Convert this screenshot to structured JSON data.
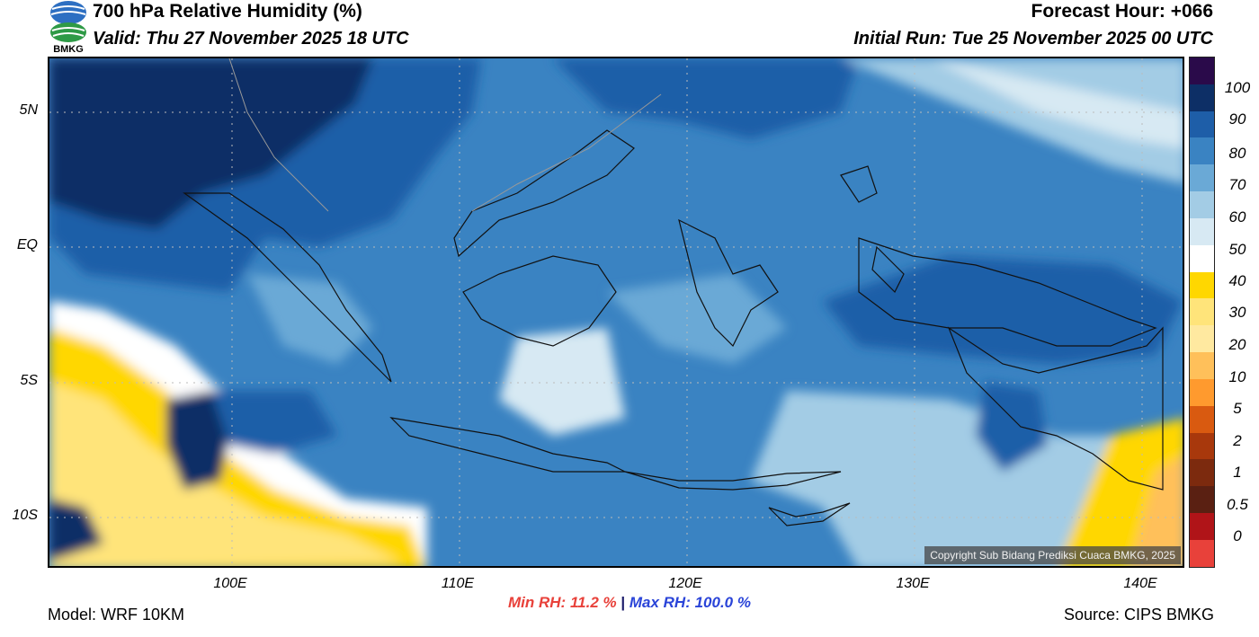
{
  "header": {
    "title": "700 hPa Relative Humidity (%)",
    "valid": "Valid: Thu 27 November 2025 18 UTC",
    "forecast_hour": "Forecast Hour: +066",
    "initial_run": "Initial Run: Tue 25 November 2025 00 UTC"
  },
  "logo": {
    "text": "BMKG"
  },
  "axes": {
    "lat_labels": [
      "5N",
      "EQ",
      "5S",
      "10S"
    ],
    "lon_labels": [
      "100E",
      "110E",
      "120E",
      "130E",
      "140E"
    ]
  },
  "colorbar": {
    "labels": [
      "100",
      "90",
      "80",
      "70",
      "60",
      "50",
      "40",
      "30",
      "20",
      "10",
      "5",
      "2",
      "1",
      "0.5",
      "0"
    ],
    "colors": [
      "#2a0a4a",
      "#0d2f66",
      "#1e5ea8",
      "#3a83c2",
      "#6aa9d6",
      "#a3cce5",
      "#d7e9f3",
      "#ffffff",
      "#ffd700",
      "#ffe47a",
      "#ffe9a0",
      "#ffc05a",
      "#ff9a2e",
      "#d95a10",
      "#a8380c",
      "#7c2a0e",
      "#5a2012",
      "#b01418",
      "#e8413a"
    ]
  },
  "stats": {
    "min_rh": "Min RH:  11.2 %",
    "separator": "|",
    "max_rh": "Max RH: 100.0 %"
  },
  "footer": {
    "model": "Model: WRF 10KM",
    "source": "Source: CIPS BMKG",
    "copyright": "Copyright Sub Bidang Prediksi Cuaca BMKG, 2025"
  }
}
